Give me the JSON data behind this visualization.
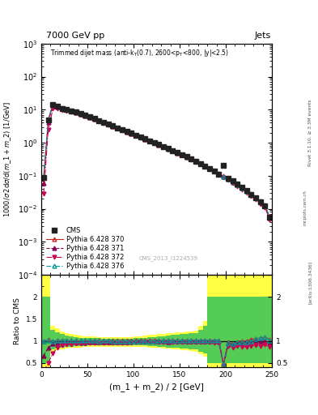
{
  "title_top": "7000 GeV pp",
  "title_right": "Jets",
  "watermark": "CMS_2013_I1224539",
  "ylabel_main": "1000/σ 2dσ/d(m_1 + m_2) [1/GeV]",
  "ylabel_ratio": "Ratio to CMS",
  "xlabel": "(m_1 + m_2) / 2 [GeV]",
  "xlim": [
    0,
    250
  ],
  "ylim_main": [
    0.0001,
    1000.0
  ],
  "ratio_ylim": [
    0.4,
    2.5
  ],
  "rivet_text": "Rivet 3.1.10, ≥ 3.3M events",
  "arxiv_text": "[arXiv:1306.3436]",
  "mcplots_text": "mcplots.cern.ch",
  "cms_x": [
    2.5,
    7.5,
    12.5,
    17.5,
    22.5,
    27.5,
    32.5,
    37.5,
    42.5,
    47.5,
    52.5,
    57.5,
    62.5,
    67.5,
    72.5,
    77.5,
    82.5,
    87.5,
    92.5,
    97.5,
    102.5,
    107.5,
    112.5,
    117.5,
    122.5,
    127.5,
    132.5,
    137.5,
    142.5,
    147.5,
    152.5,
    157.5,
    162.5,
    167.5,
    172.5,
    177.5,
    182.5,
    187.5,
    192.5,
    197.5,
    202.5,
    207.5,
    212.5,
    217.5,
    222.5,
    227.5,
    232.5,
    237.5,
    242.5,
    247.5
  ],
  "cms_y": [
    0.09,
    5.0,
    14.5,
    12.5,
    11.0,
    10.2,
    9.3,
    8.5,
    7.6,
    6.8,
    6.0,
    5.3,
    4.7,
    4.15,
    3.65,
    3.2,
    2.82,
    2.48,
    2.18,
    1.92,
    1.7,
    1.49,
    1.31,
    1.15,
    1.0,
    0.875,
    0.762,
    0.663,
    0.576,
    0.5,
    0.433,
    0.373,
    0.32,
    0.272,
    0.231,
    0.193,
    0.162,
    0.135,
    0.113,
    0.2,
    0.083,
    0.07,
    0.055,
    0.044,
    0.035,
    0.027,
    0.021,
    0.016,
    0.012,
    0.0055
  ],
  "p370_x": [
    2.5,
    7.5,
    12.5,
    17.5,
    22.5,
    27.5,
    32.5,
    37.5,
    42.5,
    47.5,
    52.5,
    57.5,
    62.5,
    67.5,
    72.5,
    77.5,
    82.5,
    87.5,
    92.5,
    97.5,
    102.5,
    107.5,
    112.5,
    117.5,
    122.5,
    127.5,
    132.5,
    137.5,
    142.5,
    147.5,
    152.5,
    157.5,
    162.5,
    167.5,
    172.5,
    177.5,
    182.5,
    187.5,
    192.5,
    197.5,
    202.5,
    207.5,
    212.5,
    217.5,
    222.5,
    227.5,
    232.5,
    237.5,
    242.5,
    247.5
  ],
  "p370_y": [
    0.09,
    5.1,
    14.4,
    12.6,
    11.1,
    10.3,
    9.35,
    8.55,
    7.65,
    6.85,
    6.05,
    5.35,
    4.72,
    4.18,
    3.68,
    3.22,
    2.83,
    2.49,
    2.19,
    1.93,
    1.71,
    1.5,
    1.32,
    1.16,
    1.01,
    0.882,
    0.768,
    0.668,
    0.58,
    0.503,
    0.436,
    0.376,
    0.323,
    0.275,
    0.234,
    0.196,
    0.164,
    0.137,
    0.115,
    0.096,
    0.08,
    0.066,
    0.054,
    0.044,
    0.035,
    0.028,
    0.022,
    0.017,
    0.013,
    0.0057
  ],
  "p371_x": [
    2.5,
    7.5,
    12.5,
    17.5,
    22.5,
    27.5,
    32.5,
    37.5,
    42.5,
    47.5,
    52.5,
    57.5,
    62.5,
    67.5,
    72.5,
    77.5,
    82.5,
    87.5,
    92.5,
    97.5,
    102.5,
    107.5,
    112.5,
    117.5,
    122.5,
    127.5,
    132.5,
    137.5,
    142.5,
    147.5,
    152.5,
    157.5,
    162.5,
    167.5,
    172.5,
    177.5,
    182.5,
    187.5,
    192.5,
    197.5,
    202.5,
    207.5,
    212.5,
    217.5,
    222.5,
    227.5,
    232.5,
    237.5,
    242.5,
    247.5
  ],
  "p371_y": [
    0.06,
    4.2,
    13.5,
    12.0,
    10.6,
    9.9,
    9.0,
    8.2,
    7.35,
    6.6,
    5.85,
    5.18,
    4.58,
    4.05,
    3.57,
    3.13,
    2.76,
    2.43,
    2.14,
    1.89,
    1.67,
    1.47,
    1.29,
    1.13,
    0.987,
    0.86,
    0.749,
    0.651,
    0.566,
    0.491,
    0.426,
    0.368,
    0.316,
    0.269,
    0.229,
    0.192,
    0.161,
    0.135,
    0.113,
    0.094,
    0.078,
    0.064,
    0.052,
    0.042,
    0.034,
    0.027,
    0.021,
    0.016,
    0.012,
    0.0052
  ],
  "p372_x": [
    2.5,
    7.5,
    12.5,
    17.5,
    22.5,
    27.5,
    32.5,
    37.5,
    42.5,
    47.5,
    52.5,
    57.5,
    62.5,
    67.5,
    72.5,
    77.5,
    82.5,
    87.5,
    92.5,
    97.5,
    102.5,
    107.5,
    112.5,
    117.5,
    122.5,
    127.5,
    132.5,
    137.5,
    142.5,
    147.5,
    152.5,
    157.5,
    162.5,
    167.5,
    172.5,
    177.5,
    182.5,
    187.5,
    192.5,
    197.5,
    202.5,
    207.5,
    212.5,
    217.5,
    222.5,
    227.5,
    232.5,
    237.5,
    242.5,
    247.5
  ],
  "p372_y": [
    0.028,
    2.5,
    10.5,
    10.5,
    9.8,
    9.3,
    8.6,
    7.9,
    7.1,
    6.4,
    5.7,
    5.05,
    4.47,
    3.96,
    3.49,
    3.06,
    2.7,
    2.38,
    2.1,
    1.85,
    1.64,
    1.44,
    1.27,
    1.11,
    0.97,
    0.845,
    0.736,
    0.64,
    0.556,
    0.483,
    0.419,
    0.362,
    0.311,
    0.265,
    0.225,
    0.188,
    0.157,
    0.13,
    0.108,
    0.089,
    0.073,
    0.059,
    0.048,
    0.038,
    0.03,
    0.024,
    0.019,
    0.014,
    0.011,
    0.0047
  ],
  "p376_x": [
    2.5,
    7.5,
    12.5,
    17.5,
    22.5,
    27.5,
    32.5,
    37.5,
    42.5,
    47.5,
    52.5,
    57.5,
    62.5,
    67.5,
    72.5,
    77.5,
    82.5,
    87.5,
    92.5,
    97.5,
    102.5,
    107.5,
    112.5,
    117.5,
    122.5,
    127.5,
    132.5,
    137.5,
    142.5,
    147.5,
    152.5,
    157.5,
    162.5,
    167.5,
    172.5,
    177.5,
    182.5,
    187.5,
    192.5,
    197.5,
    202.5,
    207.5,
    212.5,
    217.5,
    222.5,
    227.5,
    232.5,
    237.5,
    242.5,
    247.5
  ],
  "p376_y": [
    0.09,
    5.05,
    14.3,
    12.55,
    11.05,
    10.25,
    9.32,
    8.52,
    7.63,
    6.83,
    6.03,
    5.33,
    4.7,
    4.16,
    3.66,
    3.2,
    2.82,
    2.48,
    2.18,
    1.92,
    1.7,
    1.49,
    1.31,
    1.15,
    1.0,
    0.878,
    0.765,
    0.665,
    0.578,
    0.501,
    0.434,
    0.375,
    0.322,
    0.274,
    0.233,
    0.195,
    0.163,
    0.136,
    0.114,
    0.095,
    0.079,
    0.065,
    0.053,
    0.043,
    0.034,
    0.027,
    0.022,
    0.017,
    0.013,
    0.0056
  ],
  "color_cms": "#222222",
  "color_370": "#cc2222",
  "color_371": "#880055",
  "color_372": "#cc0055",
  "color_376": "#009999",
  "yellow_bin_edges": [
    0,
    5,
    10,
    15,
    20,
    25,
    30,
    35,
    40,
    45,
    50,
    55,
    60,
    65,
    70,
    75,
    80,
    85,
    90,
    95,
    100,
    105,
    110,
    115,
    120,
    125,
    130,
    135,
    140,
    145,
    150,
    155,
    160,
    165,
    170,
    175,
    180,
    185,
    190,
    195,
    200,
    205,
    210,
    215,
    220,
    225,
    230,
    235,
    240,
    245,
    250
  ],
  "yellow_hi": [
    2.5,
    2.5,
    1.35,
    1.28,
    1.22,
    1.18,
    1.15,
    1.13,
    1.12,
    1.11,
    1.1,
    1.1,
    1.09,
    1.09,
    1.09,
    1.09,
    1.09,
    1.09,
    1.09,
    1.09,
    1.1,
    1.11,
    1.12,
    1.13,
    1.14,
    1.15,
    1.16,
    1.17,
    1.18,
    1.19,
    1.2,
    1.21,
    1.22,
    1.23,
    1.35,
    1.45,
    2.5,
    2.5,
    2.5,
    2.5,
    2.5,
    2.5,
    2.5,
    2.5,
    2.5,
    2.5,
    2.5,
    2.5,
    2.5,
    2.5
  ],
  "yellow_lo": [
    0.4,
    0.4,
    0.72,
    0.78,
    0.81,
    0.83,
    0.84,
    0.85,
    0.85,
    0.86,
    0.86,
    0.87,
    0.87,
    0.87,
    0.87,
    0.87,
    0.87,
    0.87,
    0.87,
    0.87,
    0.87,
    0.86,
    0.86,
    0.85,
    0.85,
    0.84,
    0.83,
    0.82,
    0.81,
    0.8,
    0.79,
    0.78,
    0.77,
    0.75,
    0.7,
    0.65,
    0.4,
    0.4,
    0.4,
    0.4,
    0.4,
    0.4,
    0.4,
    0.4,
    0.4,
    0.4,
    0.4,
    0.4,
    0.4,
    0.4
  ],
  "green_hi": [
    2.0,
    2.0,
    1.25,
    1.2,
    1.15,
    1.12,
    1.1,
    1.08,
    1.07,
    1.07,
    1.06,
    1.06,
    1.06,
    1.05,
    1.05,
    1.05,
    1.05,
    1.05,
    1.05,
    1.05,
    1.06,
    1.07,
    1.07,
    1.08,
    1.09,
    1.1,
    1.11,
    1.12,
    1.13,
    1.14,
    1.15,
    1.16,
    1.17,
    1.18,
    1.25,
    1.35,
    2.0,
    2.0,
    2.0,
    2.0,
    2.0,
    2.0,
    2.0,
    2.0,
    2.0,
    2.0,
    2.0,
    2.0,
    2.0,
    2.0
  ],
  "green_lo": [
    0.5,
    0.5,
    0.8,
    0.83,
    0.85,
    0.86,
    0.87,
    0.88,
    0.88,
    0.88,
    0.89,
    0.89,
    0.89,
    0.9,
    0.9,
    0.9,
    0.9,
    0.9,
    0.9,
    0.9,
    0.89,
    0.89,
    0.89,
    0.88,
    0.88,
    0.87,
    0.86,
    0.85,
    0.85,
    0.84,
    0.83,
    0.82,
    0.81,
    0.8,
    0.76,
    0.72,
    0.5,
    0.5,
    0.5,
    0.5,
    0.5,
    0.5,
    0.5,
    0.5,
    0.5,
    0.5,
    0.5,
    0.5,
    0.5,
    0.5
  ]
}
